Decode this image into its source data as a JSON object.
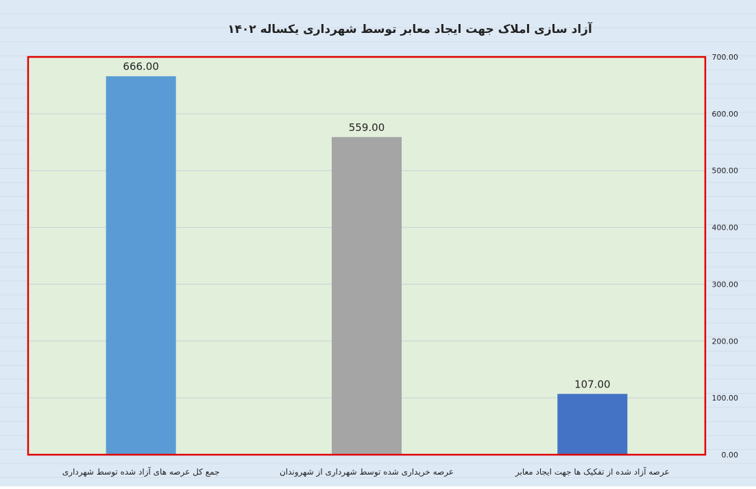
{
  "chart_data": {
    "type": "bar",
    "title": "آزاد سازی املاک جهت ایجاد معابر توسط شهرداری یکساله ۱۴۰۲",
    "categories": [
      "جمع کل عرصه های آزاد شده توسط شهرداری",
      "عرصه خریداری شده توسط شهرداری از شهروندان",
      "عرصه آزاد شده از تفکیک ها جهت ایجاد معابر"
    ],
    "values": [
      666,
      559,
      107
    ],
    "data_labels": [
      "666.00",
      "559.00",
      "107.00"
    ],
    "bar_colors": [
      "#5b9bd5",
      "#a5a5a5",
      "#4472c4"
    ],
    "ylim": [
      0,
      700
    ],
    "yticks": [
      "0.00",
      "100.00",
      "200.00",
      "300.00",
      "400.00",
      "500.00",
      "600.00",
      "700.00"
    ],
    "y_axis_position": "right",
    "xlabel": "",
    "ylabel": "",
    "grid": true,
    "legend": "none",
    "colors": {
      "chart_background": "#dde9f5",
      "plot_background": "#e2efda",
      "plot_border": "#e00000",
      "gridline": "#c8d0d8",
      "text": "#222222"
    }
  }
}
